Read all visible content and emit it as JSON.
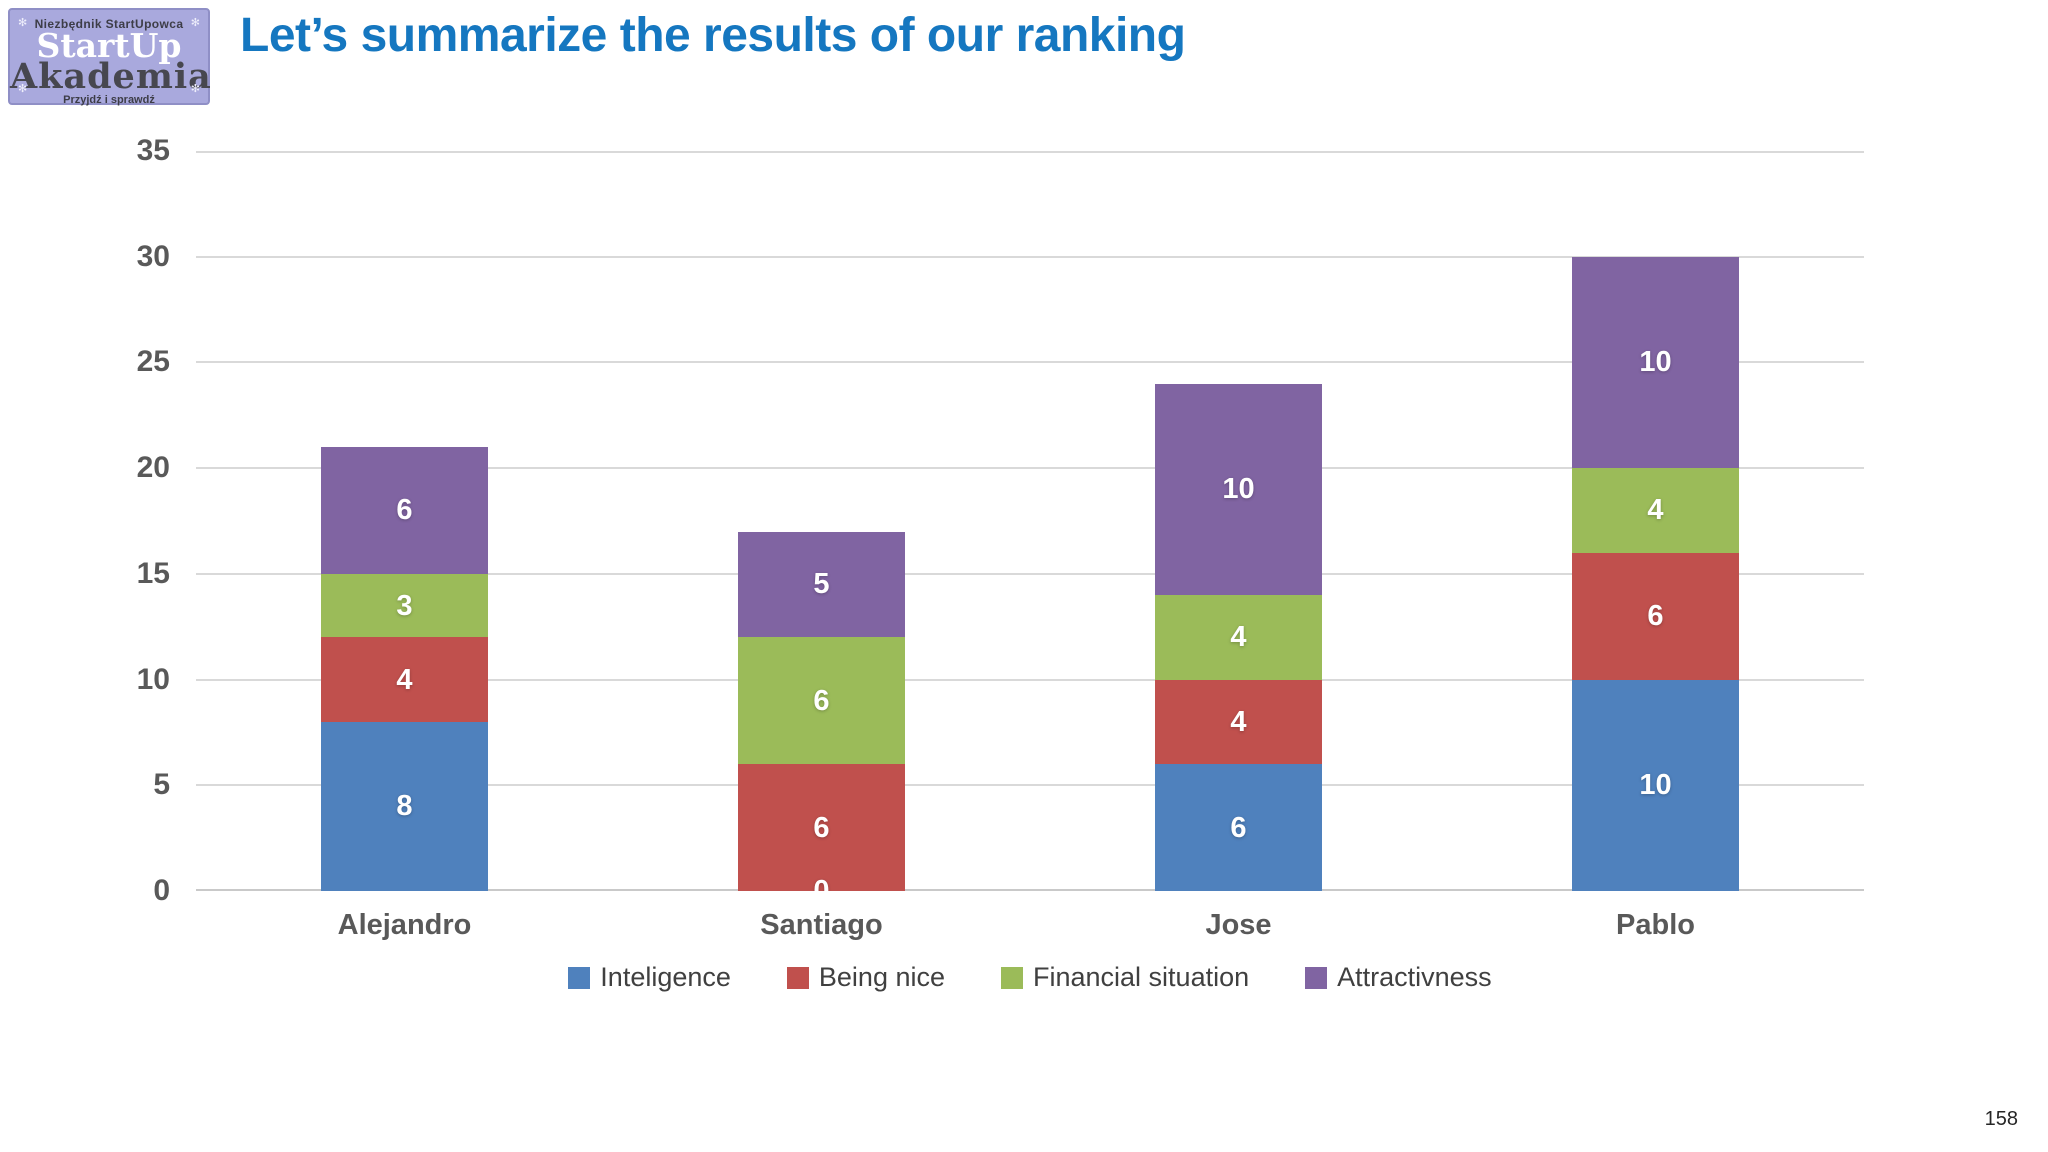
{
  "slide": {
    "title": "Let’s summarize the results of our ranking",
    "page_number": "158",
    "logo": {
      "top_text": "Niezbędnik StartUpowca",
      "name_line1": "StartUp",
      "name_line2": "Akademia",
      "bottom_text": "Przyjdź i sprawdź",
      "ornament": "✻"
    },
    "colors": {
      "title_text": "#1577C0",
      "axis_text": "#595959",
      "legend_text": "#404040",
      "gridline": "#D9D9D9",
      "data_label_text": "#FFFFFF",
      "logo_bg": "#A9A9DD"
    }
  },
  "chart_data": {
    "type": "bar",
    "stacked": true,
    "title": "",
    "categories": [
      "Alejandro",
      "Santiago",
      "Jose",
      "Pablo"
    ],
    "series": [
      {
        "name": "Inteligence",
        "color": "#4F81BD",
        "values": [
          8,
          0,
          6,
          10
        ]
      },
      {
        "name": "Being nice",
        "color": "#C0504D",
        "values": [
          4,
          6,
          4,
          6
        ]
      },
      {
        "name": "Financial situation",
        "color": "#9BBB59",
        "values": [
          3,
          6,
          4,
          4
        ]
      },
      {
        "name": "Attractivness",
        "color": "#8064A2",
        "values": [
          6,
          5,
          10,
          10
        ]
      }
    ],
    "totals": [
      21,
      17,
      24,
      30
    ],
    "y_axis": {
      "min": 0,
      "max": 35,
      "step": 5,
      "ticks": [
        0,
        5,
        10,
        15,
        20,
        25,
        30,
        35
      ]
    },
    "grid": true,
    "legend_position": "bottom",
    "data_labels": true
  }
}
